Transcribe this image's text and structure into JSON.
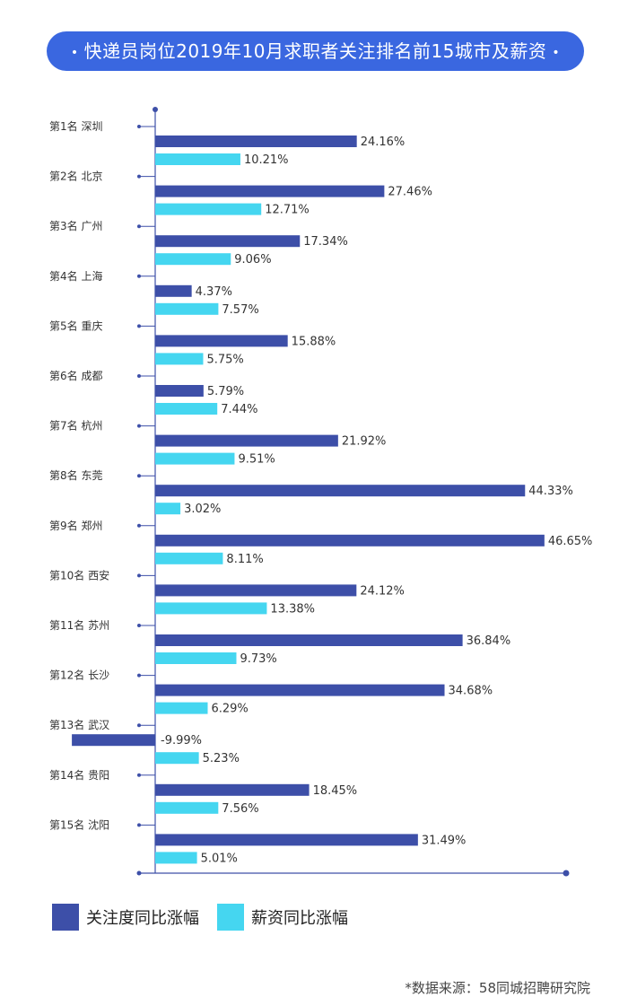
{
  "title": "快递员岗位2019年10月求职者关注排名前15城市及薪资",
  "title_dot": "•",
  "source": "*数据来源：58同城招聘研究院",
  "colors": {
    "attention": "#3d4fa8",
    "salary": "#45d6f0",
    "title_bg": "#3a67e0",
    "axis": "#3d4fa8"
  },
  "legend": [
    {
      "label": "关注度同比涨幅",
      "color": "#3d4fa8"
    },
    {
      "label": "薪资同比涨幅",
      "color": "#45d6f0"
    }
  ],
  "chart_data": {
    "type": "bar",
    "orientation": "horizontal",
    "categories": [
      "第1名 深圳",
      "第2名 北京",
      "第3名 广州",
      "第4名 上海",
      "第5名 重庆",
      "第6名 成都",
      "第7名 杭州",
      "第8名 东莞",
      "第9名 郑州",
      "第10名 西安",
      "第11名 苏州",
      "第12名 长沙",
      "第13名 武汉",
      "第14名 贵阳",
      "第15名 沈阳"
    ],
    "series": [
      {
        "name": "关注度同比涨幅",
        "color": "#3d4fa8",
        "values": [
          24.16,
          27.46,
          17.34,
          4.37,
          15.88,
          5.79,
          21.92,
          44.33,
          46.65,
          24.12,
          36.84,
          34.68,
          -9.99,
          18.45,
          31.49
        ],
        "labels": [
          "24.16%",
          "27.46%",
          "17.34%",
          "4.37%",
          "15.88%",
          "5.79%",
          "21.92%",
          "44.33%",
          "46.65%",
          "24.12%",
          "36.84%",
          "34.68%",
          "-9.99%",
          "18.45%",
          "31.49%"
        ]
      },
      {
        "name": "薪资同比涨幅",
        "color": "#45d6f0",
        "values": [
          10.21,
          12.71,
          9.06,
          7.57,
          5.75,
          7.44,
          9.51,
          3.02,
          8.11,
          13.38,
          9.73,
          6.29,
          5.23,
          7.56,
          5.01
        ],
        "labels": [
          "10.21%",
          "12.71%",
          "9.06%",
          "7.57%",
          "5.75%",
          "7.44%",
          "9.51%",
          "3.02%",
          "8.11%",
          "13.38%",
          "9.73%",
          "6.29%",
          "5.23%",
          "7.56%",
          "5.01%"
        ]
      }
    ],
    "xlim": [
      -10,
      48
    ],
    "legend_position": "bottom-left",
    "grid": false
  }
}
